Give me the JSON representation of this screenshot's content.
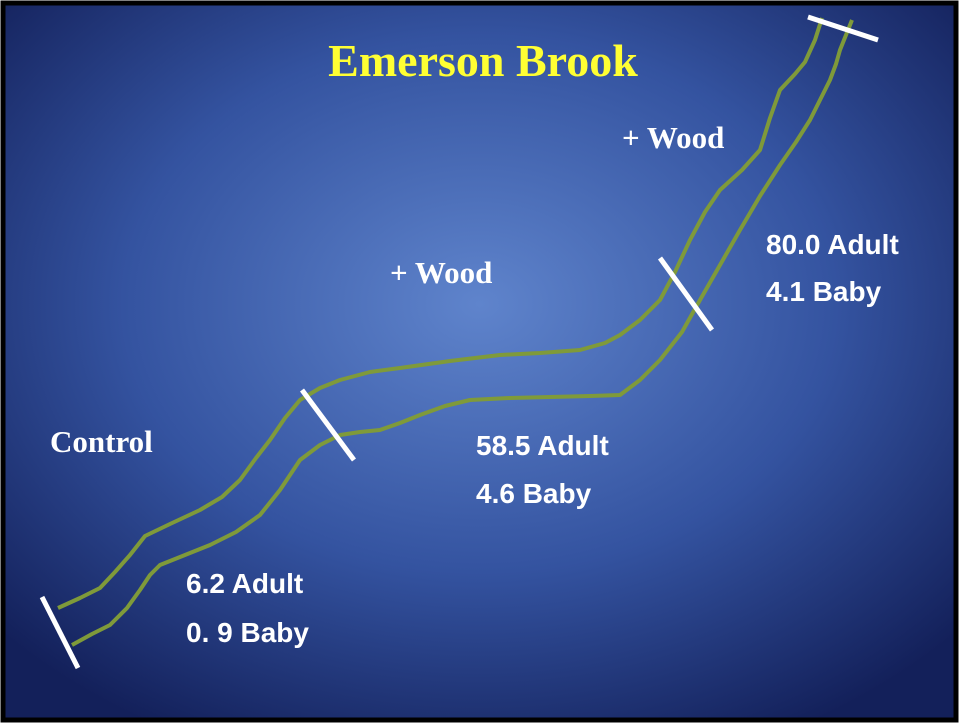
{
  "title": "Emerson Brook",
  "reaches": [
    {
      "label": "Control",
      "adult": "6.2 Adult",
      "baby": "0. 9 Baby"
    },
    {
      "label": "+ Wood",
      "adult": "58.5 Adult",
      "baby": "4.6 Baby"
    },
    {
      "label": "+ Wood",
      "adult": "80.0 Adult",
      "baby": "4.1 Baby"
    }
  ]
}
